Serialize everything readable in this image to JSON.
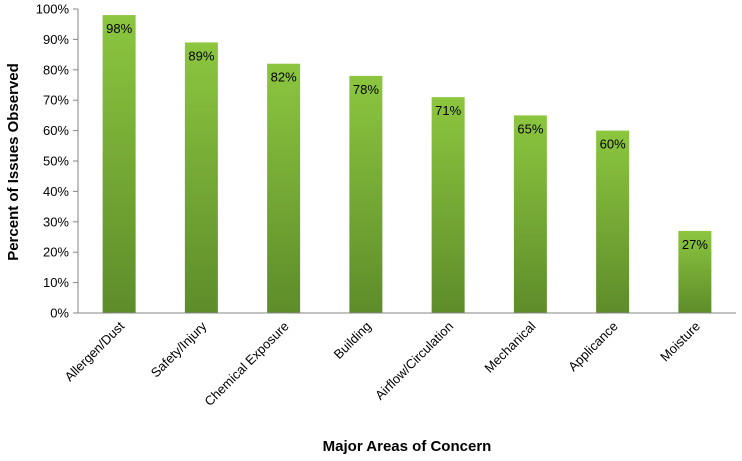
{
  "chart_data": {
    "type": "bar",
    "title": "",
    "xlabel": "Major Areas of Concern",
    "ylabel": "Percent of Issues Observed",
    "categories": [
      "Allergen/Dust",
      "Safety/Injury",
      "Chemical Exposure",
      "Building",
      "Airflow/Circulation",
      "Mechanical",
      "Applicance",
      "Moisture"
    ],
    "values": [
      98,
      89,
      82,
      78,
      71,
      65,
      60,
      27
    ],
    "data_labels": [
      "98%",
      "89%",
      "82%",
      "78%",
      "71%",
      "65%",
      "60%",
      "27%"
    ],
    "ylim": [
      0,
      100
    ],
    "y_ticks": [
      0,
      10,
      20,
      30,
      40,
      50,
      60,
      70,
      80,
      90,
      100
    ],
    "y_tick_labels": [
      "0%",
      "10%",
      "20%",
      "30%",
      "40%",
      "50%",
      "60%",
      "70%",
      "80%",
      "90%",
      "100%"
    ],
    "grid": false,
    "legend": "none",
    "colors": {
      "bar_top": "#8cc63f",
      "bar_bottom": "#5e8c2a",
      "axis": "#868686"
    }
  }
}
